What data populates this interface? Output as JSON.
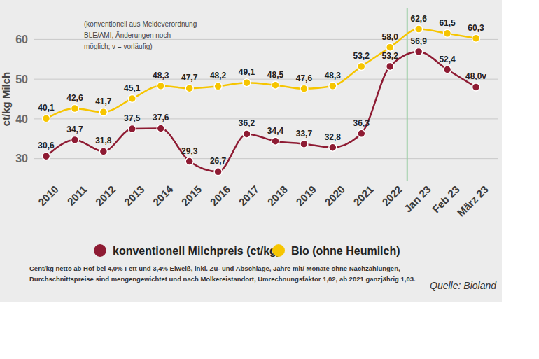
{
  "chart_data": {
    "type": "line",
    "y_label": "ct/kg Milch",
    "annotations": [
      "(konventionell aus Meldeverordnung",
      "BLE/AMI, Änderungen noch",
      "möglich; v = vorläufig)"
    ],
    "footnote": [
      "Cent/kg netto ab Hof bei 4,0% Fett und 3,4% Eiweiß, inkl. Zu- und Abschläge, Jahre mit/ Monate ohne Nachzahlungen,",
      "Durchschnittspreise sind mengengewichtet und nach Molkereistandort, Umrechnungsfaktor 1,02, ab 2021 ganzjährig 1,03."
    ],
    "source": "Quelle: Bioland",
    "categories": [
      "2010",
      "2011",
      "2012",
      "2013",
      "2014",
      "2015",
      "2016",
      "2017",
      "2018",
      "2019",
      "2020",
      "2021",
      "2022",
      "Jan 23",
      "Feb 23",
      "März 23"
    ],
    "series": [
      {
        "name": "konventionell Milchpreis (ct/kg)",
        "color": "#8e1b33",
        "values": [
          30.6,
          34.7,
          31.8,
          37.5,
          37.6,
          29.3,
          26.7,
          36.2,
          34.4,
          33.7,
          32.8,
          36.3,
          53.2,
          56.9,
          52.4,
          48.0
        ],
        "value_labels": [
          "30,6",
          "34,7",
          "31,8",
          "37,5",
          "37,6",
          "29,3",
          "26,7",
          "36,2",
          "34,4",
          "33,7",
          "32,8",
          "36,3",
          "53,2",
          "56,9",
          "52,4",
          "48,0v"
        ]
      },
      {
        "name": "Bio (ohne Heumilch)",
        "color": "#f6c500",
        "values": [
          40.1,
          42.6,
          41.7,
          45.1,
          48.3,
          47.7,
          48.2,
          49.1,
          48.5,
          47.6,
          48.3,
          53.2,
          58.0,
          62.6,
          61.5,
          60.3
        ],
        "value_labels": [
          "40,1",
          "42,6",
          "41,7",
          "45,1",
          "48,3",
          "47,7",
          "48,2",
          "49,1",
          "48,5",
          "47,6",
          "48,3",
          "53,2",
          "58,0",
          "62,6",
          "61,5",
          "60,3"
        ]
      }
    ],
    "ylim": [
      25,
      65
    ],
    "yticks": [
      30,
      40,
      50,
      60
    ],
    "grid": true,
    "legend": "bottom",
    "data_labels": true,
    "marker": "circle"
  }
}
